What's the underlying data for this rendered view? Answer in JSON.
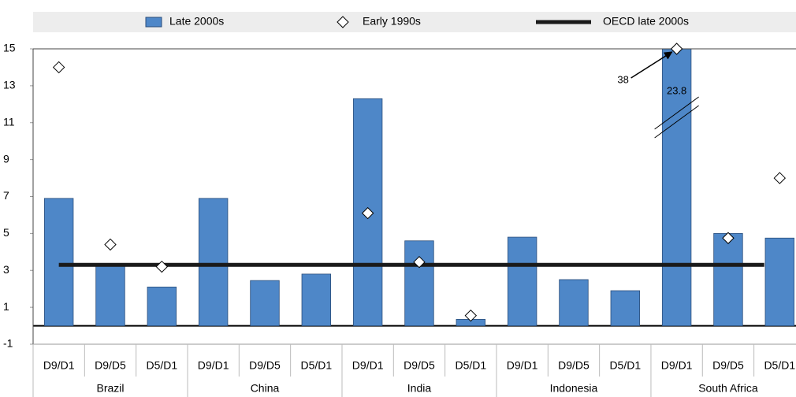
{
  "chart_data": {
    "type": "bar",
    "groups": [
      {
        "name": "Brazil",
        "categories": [
          "D9/D1",
          "D9/D5",
          "D5/D1"
        ]
      },
      {
        "name": "China",
        "categories": [
          "D9/D1",
          "D9/D5",
          "D5/D1"
        ]
      },
      {
        "name": "India",
        "categories": [
          "D9/D1",
          "D9/D5",
          "D5/D1"
        ]
      },
      {
        "name": "Indonesia",
        "categories": [
          "D9/D1",
          "D9/D5",
          "D5/D1"
        ]
      },
      {
        "name": "South Africa",
        "categories": [
          "D9/D1",
          "D9/D5",
          "D5/D1"
        ]
      }
    ],
    "series": [
      {
        "name": "Late 2000s",
        "kind": "bar",
        "color": "#4e87c8",
        "values": [
          6.9,
          3.3,
          2.1,
          6.9,
          2.45,
          2.8,
          12.3,
          4.6,
          0.35,
          4.8,
          2.5,
          1.9,
          23.8,
          5.0,
          4.75
        ],
        "value_labels": [
          null,
          null,
          null,
          null,
          null,
          null,
          null,
          null,
          null,
          null,
          null,
          null,
          "23.8",
          null,
          null
        ]
      },
      {
        "name": "Early 1990s",
        "kind": "marker",
        "color": "#ffffff",
        "values": [
          14,
          4.4,
          3.2,
          null,
          null,
          null,
          6.1,
          3.45,
          0.55,
          null,
          null,
          null,
          38,
          4.75,
          8.0
        ],
        "value_labels": [
          null,
          null,
          null,
          null,
          null,
          null,
          null,
          null,
          null,
          null,
          null,
          null,
          "38",
          null,
          null
        ]
      }
    ],
    "reference": {
      "name": "OECD late 2000s",
      "value": 3.3,
      "color": "#1a1a1a"
    },
    "ylim": [
      -1,
      15
    ],
    "yticks": [
      -1,
      1,
      3,
      5,
      7,
      9,
      11,
      13,
      15
    ]
  }
}
